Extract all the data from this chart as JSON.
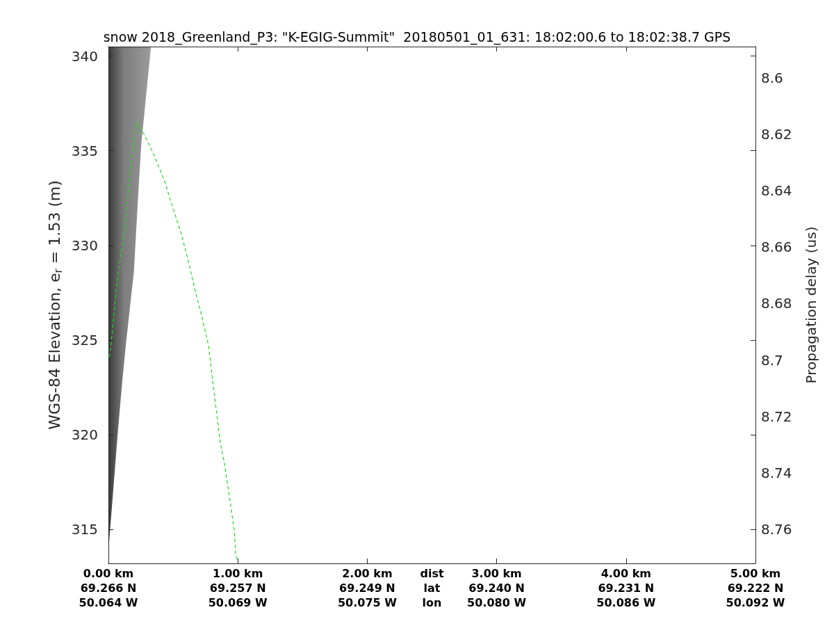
{
  "chart_data": {
    "type": "line",
    "title": "snow 2018_Greenland_P3: \"K-EGIG-Summit\"  20180501_01_631: 18:02:00.6 to 18:02:38.7 GPS",
    "ylabel": "WGS-84 Elevation, e$_{r}$ = 1.53 (m)",
    "y2label": "Propagation delay (us)",
    "xlim": [
      0,
      5
    ],
    "xticks": [
      {
        "value": 0,
        "label": "0.00 km"
      },
      {
        "value": 1,
        "label": "1.00 km"
      },
      {
        "value": 2,
        "label": "2.00 km"
      },
      {
        "value": 3,
        "label": "3.00 km"
      },
      {
        "value": 4,
        "label": "4.00 km"
      },
      {
        "value": 5,
        "label": "5.00 km"
      }
    ],
    "ylim": [
      313.2,
      340.5
    ],
    "yticks": [
      315,
      320,
      325,
      330,
      335,
      340
    ],
    "y2lim": [
      8.772,
      8.589
    ],
    "y2ticks": [
      8.6,
      8.62,
      8.64,
      8.66,
      8.68,
      8.7,
      8.72,
      8.74,
      8.76
    ],
    "annotations": [
      "dist\nlat\nlon",
      "69.266 N\n50.064 W",
      "69.257 N\n50.069 W",
      "69.249 N\n50.075 W",
      "69.240 N\n50.080 W",
      "69.231 N\n50.086 W",
      "69.222 N\n50.092 W"
    ],
    "color": "#22dd22",
    "line_style": "dashed",
    "marker": "none",
    "x": [
      0.005,
      0.012,
      0.031,
      0.054,
      0.075,
      0.124,
      0.147,
      0.165,
      0.192,
      0.219,
      0.273,
      0.344,
      0.434,
      0.488,
      0.559,
      0.613,
      0.667,
      0.72,
      0.774,
      0.81,
      0.864,
      0.899,
      0.935,
      0.972,
      0.985,
      0.995
    ],
    "values": [
      324.1,
      324.3,
      325.5,
      327.2,
      328.6,
      330.7,
      332.3,
      333.9,
      335.4,
      336.5,
      335.9,
      334.9,
      333.4,
      332.2,
      330.7,
      329.3,
      327.7,
      326.3,
      324.7,
      322.6,
      319.6,
      318.4,
      316.7,
      315.0,
      313.6,
      313.4
    ]
  }
}
